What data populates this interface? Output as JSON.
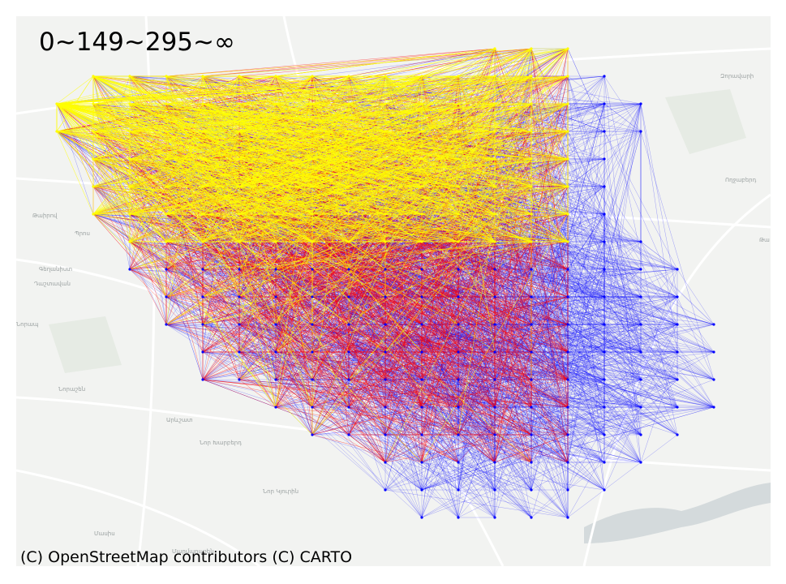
{
  "legend": {
    "text": "0~149~295~∞"
  },
  "attribution": "(C) OpenStreetMap contributors (C) CARTO",
  "colors": {
    "background": "#f2f3f1",
    "road": "#ffffff",
    "water": "#d4dadc",
    "park": "#e6ebe4",
    "flow_low": "#0000ff",
    "flow_mid": "#ff0000",
    "flow_high": "#ffff00"
  },
  "place_labels": [
    "Զորավարի",
    "Ողջաբերդ",
    "Թա",
    "Թաիրով",
    "Պրոս",
    "Գեղանիստ",
    "Դաշտավան",
    "Նորապ",
    "Նորաշեն",
    "Արևշատ",
    "Նոր Խարբերդ",
    "Նոր Կյուրին",
    "Մասիս",
    "Մարմարաշեն"
  ]
}
